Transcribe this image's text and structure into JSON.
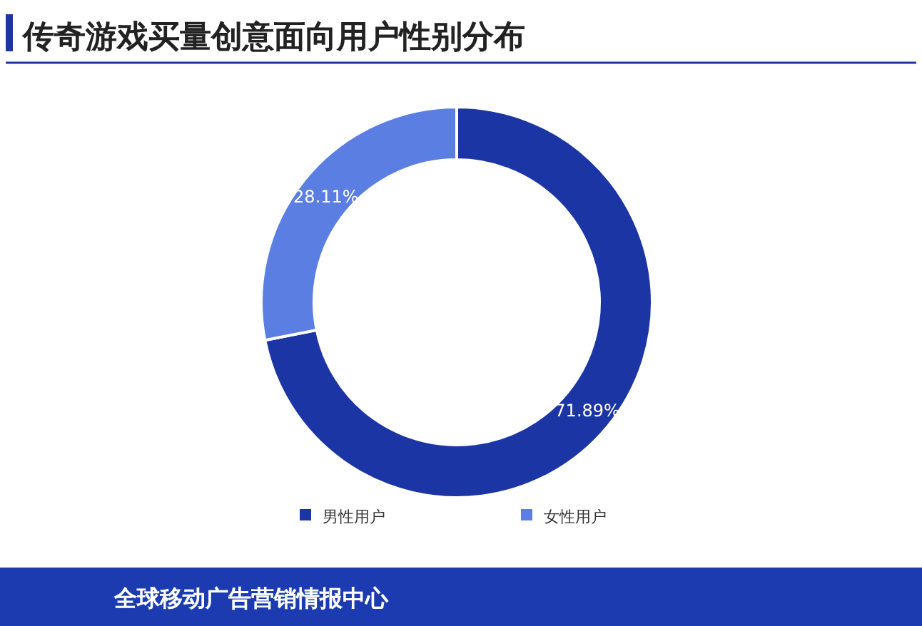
{
  "chart_data": {
    "type": "donut",
    "title": "传奇游戏买量创意面向用户性别分布",
    "categories": [
      "男性用户",
      "女性用户"
    ],
    "values": [
      71.89,
      28.11
    ],
    "colors": [
      "#1c35a5",
      "#5b7ee3"
    ],
    "value_labels": [
      "71.89%",
      "28.11%"
    ],
    "legend": "bottom",
    "annotations": [
      "全球移动广告营销情报中心"
    ]
  }
}
